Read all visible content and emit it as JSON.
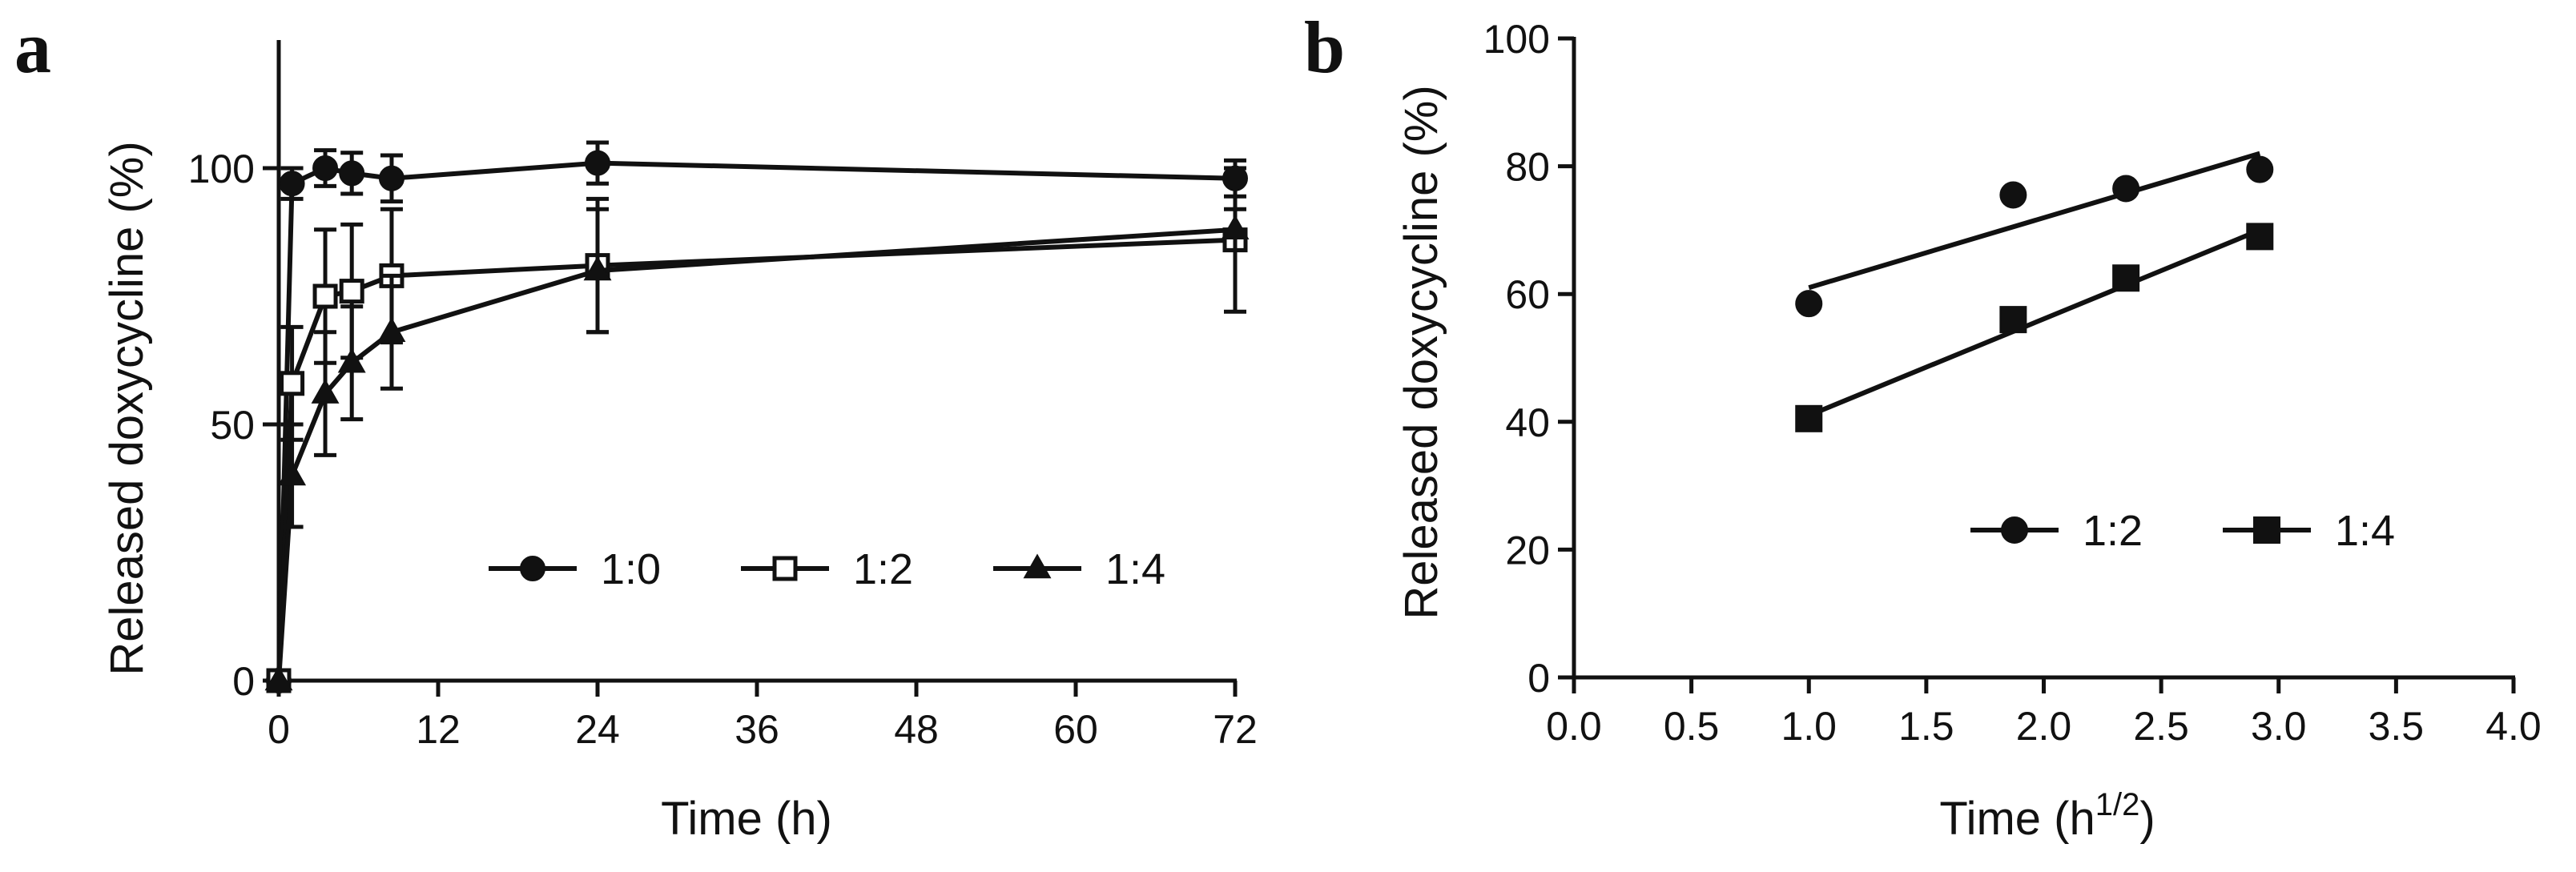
{
  "chart_data": [
    {
      "panel": "a",
      "type": "line",
      "title": "",
      "xlabel": "Time (h)",
      "ylabel": "Released doxycycline (%)",
      "xlim": [
        0,
        72
      ],
      "ylim": [
        0,
        125
      ],
      "xticks": [
        0,
        12,
        24,
        36,
        48,
        60,
        72
      ],
      "yticks": [
        0,
        50,
        100
      ],
      "legend": {
        "placement": "bottom-right",
        "entries": [
          "1:0",
          "1:2",
          "1:4"
        ]
      },
      "series": [
        {
          "name": "1:0",
          "marker": "circle-filled",
          "x": [
            0,
            1,
            3.5,
            5.5,
            8.5,
            24,
            72
          ],
          "y": [
            0,
            97,
            100,
            99,
            98,
            101,
            98
          ],
          "err": [
            0,
            3,
            3.5,
            4,
            4.5,
            4,
            3.5
          ]
        },
        {
          "name": "1:2",
          "marker": "square-open",
          "x": [
            0,
            1,
            3.5,
            5.5,
            8.5,
            24,
            72
          ],
          "y": [
            0,
            58,
            75,
            76,
            79,
            81,
            86
          ],
          "err": [
            0,
            11,
            13,
            13,
            13,
            13,
            14
          ]
        },
        {
          "name": "1:4",
          "marker": "triangle-filled",
          "x": [
            0,
            1,
            3.5,
            5.5,
            8.5,
            24,
            72
          ],
          "y": [
            0,
            40,
            56,
            62,
            68,
            80,
            88
          ],
          "err": [
            0,
            10,
            12,
            11,
            11,
            12,
            4
          ]
        }
      ]
    },
    {
      "panel": "b",
      "type": "scatter",
      "title": "",
      "xlabel": "Time (h",
      "xlabel_sup": "1/2",
      "xlabel_end": ")",
      "ylabel": "Released doxycycline (%)",
      "xlim": [
        0,
        4
      ],
      "ylim": [
        0,
        100
      ],
      "xticks": [
        "0.0",
        "0.5",
        "1.0",
        "1.5",
        "2.0",
        "2.5",
        "3.0",
        "3.5",
        "4.0"
      ],
      "yticks": [
        "0",
        "20",
        "40",
        "60",
        "80",
        "100"
      ],
      "legend": {
        "placement": "bottom-right",
        "entries": [
          "1:2",
          "1:4"
        ]
      },
      "series": [
        {
          "name": "1:2",
          "marker": "circle-filled",
          "x": [
            1.0,
            1.87,
            2.35,
            2.92
          ],
          "y": [
            58.5,
            75.5,
            76.5,
            79.5
          ],
          "fit": {
            "x": [
              1.0,
              2.92
            ],
            "y": [
              61,
              82
            ]
          }
        },
        {
          "name": "1:4",
          "marker": "square-filled",
          "x": [
            1.0,
            1.87,
            2.35,
            2.92
          ],
          "y": [
            40.5,
            56,
            62.5,
            69
          ],
          "fit": {
            "x": [
              1.0,
              2.92
            ],
            "y": [
              41,
              70
            ]
          }
        }
      ]
    }
  ]
}
